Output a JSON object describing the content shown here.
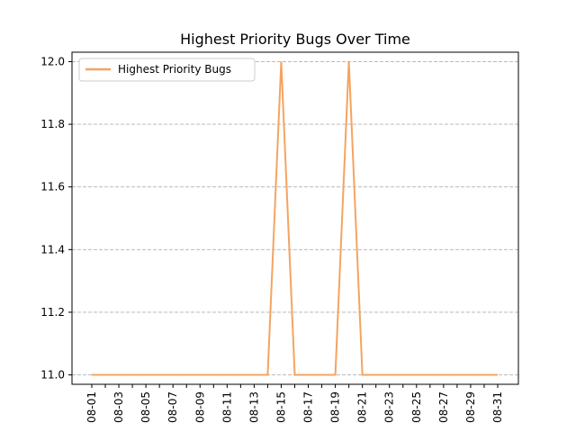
{
  "chart_data": {
    "type": "line",
    "title": "Highest Priority Bugs Over Time",
    "xlabel": "",
    "ylabel": "",
    "x": [
      "08-01",
      "08-02",
      "08-03",
      "08-04",
      "08-05",
      "08-06",
      "08-07",
      "08-08",
      "08-09",
      "08-10",
      "08-11",
      "08-12",
      "08-13",
      "08-14",
      "08-15",
      "08-16",
      "08-17",
      "08-18",
      "08-19",
      "08-20",
      "08-21",
      "08-22",
      "08-23",
      "08-24",
      "08-25",
      "08-26",
      "08-27",
      "08-28",
      "08-29",
      "08-30",
      "08-31"
    ],
    "x_tick_labels": [
      "08-01",
      "08-03",
      "08-05",
      "08-07",
      "08-09",
      "08-11",
      "08-13",
      "08-15",
      "08-17",
      "08-19",
      "08-21",
      "08-23",
      "08-25",
      "08-27",
      "08-29",
      "08-31"
    ],
    "series": [
      {
        "name": "Highest Priority Bugs",
        "color": "#f4a460",
        "values": [
          11,
          11,
          11,
          11,
          11,
          11,
          11,
          11,
          11,
          11,
          11,
          11,
          11,
          11,
          12,
          11,
          11,
          11,
          11,
          12,
          11,
          11,
          11,
          11,
          11,
          11,
          11,
          11,
          11,
          11,
          11
        ]
      }
    ],
    "y_ticks": [
      "11.0",
      "11.2",
      "11.4",
      "11.6",
      "11.8",
      "12.0"
    ],
    "ylim": [
      10.97,
      12.03
    ],
    "grid": "y-dashed",
    "legend_position": "upper-left"
  }
}
